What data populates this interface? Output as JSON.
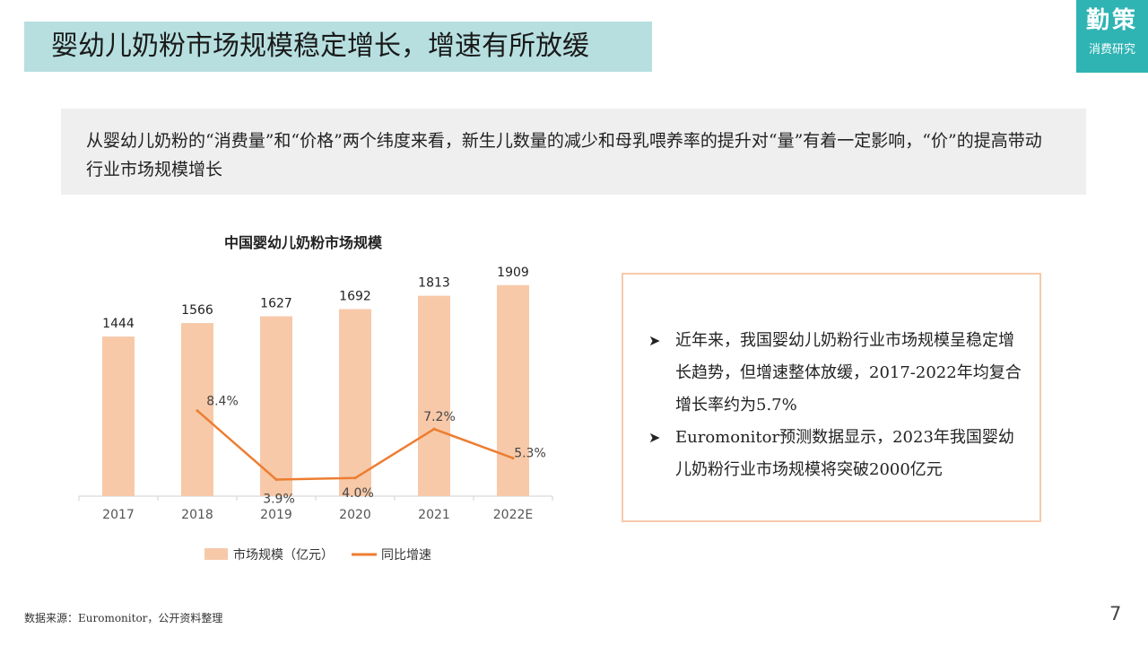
{
  "slide": {
    "title": "婴幼儿奶粉市场规模稳定增长，增速有所放缓",
    "page_number": "7",
    "source": "数据来源：Euromonitor，公开资料整理"
  },
  "logo": {
    "main": "勤策",
    "sub": "消费研究",
    "bg_color": "#2fb3b3"
  },
  "summary": {
    "text": "从婴幼儿奶粉的“消费量”和“价格”两个纬度来看，新生儿数量的减少和母乳喂养率的提升对“量”有着一定影响，“价”的提高带动行业市场规模增长"
  },
  "callout": {
    "bullets": [
      "近年来，我国婴幼儿奶粉行业市场规模呈稳定增长趋势，但增速整体放缓，2017-2022年均复合增长率约为5.7%",
      "Euromonitor预测数据显示，2023年我国婴幼儿奶粉行业市场规模将突破2000亿元"
    ],
    "bullet_icon": "arrowhead-icon",
    "border_color": "#f6c9ab"
  },
  "chart_data": {
    "type": "bar",
    "title": "中国婴幼儿奶粉市场规模",
    "categories": [
      "2017",
      "2018",
      "2019",
      "2020",
      "2021",
      "2022E"
    ],
    "series": [
      {
        "name": "市场规模（亿元）",
        "type": "bar",
        "values": [
          1444,
          1566,
          1627,
          1692,
          1813,
          1909
        ],
        "labels": [
          "1444",
          "1566",
          "1627",
          "1692",
          "1813",
          "1909"
        ],
        "color": "#f7c9a9"
      },
      {
        "name": "同比增速",
        "type": "line",
        "values": [
          null,
          8.4,
          3.9,
          4.0,
          7.2,
          5.3
        ],
        "labels": [
          "",
          "8.4%",
          "3.9%",
          "4.0%",
          "7.2%",
          "5.3%"
        ],
        "color": "#ed7d31"
      }
    ],
    "ylim": [
      0,
      2000
    ],
    "y2lim": [
      0,
      12
    ],
    "legend": "bottom",
    "grid": false
  }
}
